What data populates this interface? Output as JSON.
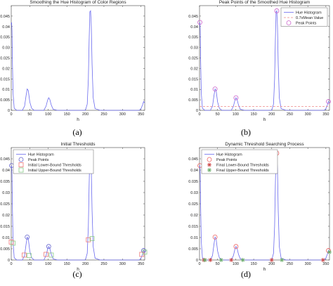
{
  "chart_data": [
    {
      "type": "line",
      "title": "Smoothing the Hue Histogram of Color Regions",
      "xlabel": "h",
      "ylabel": "",
      "xlim": [
        0,
        360
      ],
      "ylim": [
        0,
        0.05
      ],
      "x_ticks": [
        0,
        50,
        100,
        150,
        200,
        250,
        300,
        350
      ],
      "y_ticks": [
        0,
        0.005,
        0.01,
        0.015,
        0.02,
        0.025,
        0.03,
        0.035,
        0.04,
        0.045
      ],
      "caption": "(a)",
      "legend": null,
      "series": [
        {
          "color": "#6a6aee",
          "x": [
            0,
            1,
            2,
            3,
            5,
            8,
            15,
            30,
            36,
            40,
            43,
            46,
            50,
            55,
            62,
            75,
            88,
            94,
            98,
            101,
            104,
            108,
            113,
            125,
            150,
            180,
            200,
            205,
            208,
            210,
            212,
            214,
            216,
            218,
            221,
            226,
            240,
            280,
            330,
            345,
            350,
            354,
            357,
            360
          ],
          "y": [
            0.041,
            0.042,
            0.038,
            0.025,
            0.008,
            0.001,
            0,
            0,
            0.002,
            0.007,
            0.0102,
            0.0095,
            0.004,
            0.001,
            0,
            0,
            0,
            0.002,
            0.0048,
            0.006,
            0.0052,
            0.0025,
            0.0005,
            0,
            0,
            0,
            0,
            0.003,
            0.015,
            0.033,
            0.047,
            0.0475,
            0.04,
            0.022,
            0.006,
            0.0008,
            0,
            0,
            0,
            0,
            0.0008,
            0.0025,
            0.0042,
            0.0035
          ]
        }
      ]
    },
    {
      "type": "line",
      "title": "Peak Points of the Smoothed Hue Histogram",
      "xlabel": "h",
      "ylabel": "",
      "xlim": [
        0,
        360
      ],
      "ylim": [
        0,
        0.05
      ],
      "x_ticks": [
        0,
        50,
        100,
        150,
        200,
        250,
        300,
        350
      ],
      "y_ticks": [
        0,
        0.005,
        0.01,
        0.015,
        0.02,
        0.025,
        0.03,
        0.035,
        0.04,
        0.045
      ],
      "caption": "(b)",
      "legend": "top-right",
      "legend_entries": [
        {
          "label": "Hue Histogram",
          "color": "#6a6aee",
          "marker": "line"
        },
        {
          "label": "0.7xMean Value",
          "color": "#ee8888",
          "marker": "dash"
        },
        {
          "label": "Peak Points",
          "color": "#cc66cc",
          "marker": "circle"
        }
      ],
      "series": [
        {
          "name": "Hue Histogram",
          "color": "#6a6aee",
          "x": [
            0,
            1,
            2,
            3,
            5,
            8,
            15,
            30,
            36,
            40,
            43,
            46,
            50,
            55,
            62,
            75,
            88,
            94,
            98,
            101,
            104,
            108,
            113,
            125,
            150,
            180,
            200,
            205,
            208,
            210,
            212,
            214,
            216,
            218,
            221,
            226,
            240,
            280,
            330,
            345,
            350,
            354,
            357,
            360
          ],
          "y": [
            0.041,
            0.042,
            0.038,
            0.025,
            0.008,
            0.001,
            0,
            0,
            0.002,
            0.007,
            0.0102,
            0.0095,
            0.004,
            0.001,
            0,
            0,
            0,
            0.002,
            0.0048,
            0.006,
            0.0052,
            0.0025,
            0.0005,
            0,
            0,
            0,
            0,
            0.003,
            0.015,
            0.033,
            0.047,
            0.0475,
            0.04,
            0.022,
            0.006,
            0.0008,
            0,
            0,
            0,
            0,
            0.0008,
            0.0025,
            0.0042,
            0.0035
          ]
        },
        {
          "name": "0.7xMean Value",
          "color": "#ee8888",
          "dashed": true,
          "x": [
            0,
            360
          ],
          "y": [
            0.0019,
            0.0019
          ]
        }
      ],
      "points": [
        {
          "name": "Peak Points",
          "color": "#cc66cc",
          "marker": "circle",
          "x": [
            1,
            43,
            101,
            214,
            357
          ],
          "y": [
            0.042,
            0.0102,
            0.006,
            0.0475,
            0.0042
          ]
        }
      ]
    },
    {
      "type": "line",
      "title": "Initial Thresholds",
      "xlabel": "h",
      "ylabel": "",
      "xlim": [
        0,
        360
      ],
      "ylim": [
        0,
        0.05
      ],
      "x_ticks": [
        0,
        50,
        100,
        150,
        200,
        250,
        300,
        350
      ],
      "y_ticks": [
        0,
        0.005,
        0.01,
        0.015,
        0.02,
        0.025,
        0.03,
        0.035,
        0.04,
        0.045
      ],
      "caption": "(c)",
      "legend": "top-left",
      "legend_entries": [
        {
          "label": "Hue Histogram",
          "color": "#6a6aee",
          "marker": "line"
        },
        {
          "label": "Peak Points",
          "color": "#6666cc",
          "marker": "circle"
        },
        {
          "label": "Initial Lower-Bound Thresholds",
          "color": "#ee7777",
          "marker": "square"
        },
        {
          "label": "Initial Upper-Bound Thresholds",
          "color": "#88cc88",
          "marker": "square"
        }
      ],
      "series": [
        {
          "name": "Hue Histogram",
          "color": "#6a6aee",
          "x": [
            0,
            1,
            2,
            3,
            5,
            8,
            15,
            30,
            36,
            40,
            43,
            46,
            50,
            55,
            62,
            75,
            88,
            94,
            98,
            101,
            104,
            108,
            113,
            125,
            150,
            180,
            200,
            205,
            208,
            210,
            212,
            214,
            216,
            218,
            221,
            226,
            240,
            280,
            330,
            345,
            350,
            354,
            357,
            360
          ],
          "y": [
            0.041,
            0.042,
            0.038,
            0.025,
            0.008,
            0.001,
            0,
            0,
            0.002,
            0.007,
            0.0102,
            0.0095,
            0.004,
            0.001,
            0,
            0,
            0,
            0.002,
            0.0048,
            0.006,
            0.0052,
            0.0025,
            0.0005,
            0,
            0,
            0,
            0,
            0.003,
            0.015,
            0.033,
            0.047,
            0.0475,
            0.04,
            0.022,
            0.006,
            0.0008,
            0,
            0,
            0,
            0,
            0.0008,
            0.0025,
            0.0042,
            0.0035
          ]
        }
      ],
      "points": [
        {
          "name": "Peak Points",
          "color": "#6666cc",
          "marker": "circle",
          "x": [
            1,
            43,
            101,
            214,
            357
          ],
          "y": [
            0.042,
            0.0102,
            0.006,
            0.0475,
            0.0042
          ]
        },
        {
          "name": "Initial Lower-Bound Thresholds",
          "color": "#ee7777",
          "marker": "square",
          "x": [
            0,
            35,
            94,
            208,
            352
          ],
          "y": [
            0.008,
            0.0022,
            0.0025,
            0.009,
            0.0025
          ]
        },
        {
          "name": "Initial Upper-Bound Thresholds",
          "color": "#88cc88",
          "marker": "square",
          "x": [
            5,
            48,
            108,
            218,
            360
          ],
          "y": [
            0.0075,
            0.002,
            0.0022,
            0.0095,
            0.0035
          ]
        }
      ]
    },
    {
      "type": "line",
      "title": "Dynamic Threshold Searching Process",
      "xlabel": "h",
      "ylabel": "",
      "xlim": [
        0,
        360
      ],
      "ylim": [
        0,
        0.05
      ],
      "x_ticks": [
        0,
        50,
        100,
        150,
        200,
        250,
        300,
        350
      ],
      "y_ticks": [
        0,
        0.005,
        0.01,
        0.015,
        0.02,
        0.025,
        0.03,
        0.035,
        0.04,
        0.045
      ],
      "caption": "(d)",
      "legend": "top-left",
      "legend_entries": [
        {
          "label": "Hue Histogram",
          "color": "#6a6aee",
          "marker": "line"
        },
        {
          "label": "Peak Points",
          "color": "#ee6666",
          "marker": "circle"
        },
        {
          "label": "Final Lower-Bound Thresholds",
          "color": "#cc4444",
          "marker": "star"
        },
        {
          "label": "Final Upper-Bound Thresholds",
          "color": "#66aa66",
          "marker": "star"
        }
      ],
      "series": [
        {
          "name": "Hue Histogram",
          "color": "#6a6aee",
          "x": [
            0,
            1,
            2,
            3,
            5,
            8,
            15,
            30,
            36,
            40,
            43,
            46,
            50,
            55,
            62,
            75,
            88,
            94,
            98,
            101,
            104,
            108,
            113,
            125,
            150,
            180,
            200,
            205,
            208,
            210,
            212,
            214,
            216,
            218,
            221,
            226,
            240,
            280,
            330,
            345,
            350,
            354,
            357,
            360
          ],
          "y": [
            0.041,
            0.042,
            0.038,
            0.025,
            0.008,
            0.001,
            0,
            0,
            0.002,
            0.007,
            0.0102,
            0.0095,
            0.004,
            0.001,
            0,
            0,
            0,
            0.002,
            0.0048,
            0.006,
            0.0052,
            0.0025,
            0.0005,
            0,
            0,
            0,
            0,
            0.003,
            0.015,
            0.033,
            0.047,
            0.0475,
            0.04,
            0.022,
            0.006,
            0.0008,
            0,
            0,
            0,
            0,
            0.0008,
            0.0025,
            0.0042,
            0.0035
          ]
        }
      ],
      "points": [
        {
          "name": "Peak Points",
          "color": "#ee6666",
          "marker": "circle",
          "x": [
            1,
            43,
            101,
            214,
            357
          ],
          "y": [
            0.042,
            0.0102,
            0.006,
            0.0475,
            0.0042
          ]
        },
        {
          "name": "Final Lower-Bound Thresholds",
          "color": "#cc4444",
          "marker": "star",
          "x": [
            12,
            30,
            88,
            200,
            342
          ],
          "y": [
            0,
            0,
            0,
            0,
            0
          ]
        },
        {
          "name": "Final Upper-Bound Thresholds",
          "color": "#66aa66",
          "marker": "star",
          "x": [
            15,
            60,
            120,
            228,
            360
          ],
          "y": [
            0,
            0,
            0,
            0,
            0.0035
          ]
        }
      ]
    }
  ]
}
